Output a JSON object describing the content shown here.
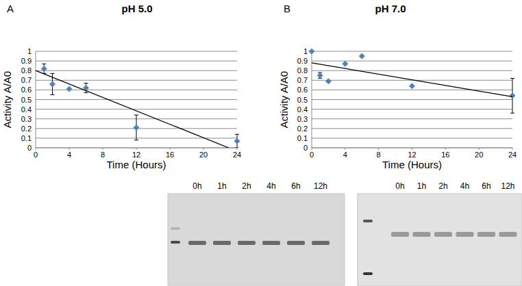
{
  "chart_data": [
    {
      "type": "scatter",
      "panel_label": "A",
      "title": "pH 5.0",
      "x_label": "Time (Hours)",
      "y_label": "Activity A/A0",
      "xlim": [
        0,
        24
      ],
      "xticks": [
        0,
        4,
        8,
        12,
        16,
        20,
        24
      ],
      "ylim": [
        0,
        1
      ],
      "yticks": [
        0,
        0.1,
        0.2,
        0.3,
        0.4,
        0.5,
        0.6,
        0.7,
        0.8,
        0.9,
        1
      ],
      "grid": true,
      "series": [
        {
          "x": [
            1,
            2,
            4,
            6,
            12,
            24
          ],
          "values": [
            0.82,
            0.66,
            0.61,
            0.62,
            0.21,
            0.07
          ],
          "errors": [
            0.05,
            0.11,
            0,
            0.05,
            0.13,
            0.07
          ],
          "color": "#4f81bd",
          "marker": "diamond"
        },
        {
          "type": "line",
          "x": [
            0,
            23
          ],
          "values": [
            0.8,
            0
          ],
          "color": "#000000",
          "line_style": "solid"
        }
      ]
    },
    {
      "type": "scatter",
      "panel_label": "B",
      "title": "pH 7.0",
      "x_label": "Time (Hours)",
      "y_label": "Activity A/A0",
      "xlim": [
        0,
        24
      ],
      "xticks": [
        0,
        4,
        8,
        12,
        16,
        20,
        24
      ],
      "ylim": [
        0,
        1
      ],
      "yticks": [
        0,
        0.1,
        0.2,
        0.3,
        0.4,
        0.5,
        0.6,
        0.7,
        0.8,
        0.9,
        1
      ],
      "grid": true,
      "series": [
        {
          "x": [
            0,
            1,
            2,
            4,
            6,
            12,
            24
          ],
          "values": [
            1,
            0.75,
            0.69,
            0.87,
            0.95,
            0.64,
            0.54
          ],
          "errors": [
            0,
            0.03,
            0,
            0,
            0,
            0,
            0.18
          ],
          "color": "#4f81bd",
          "marker": "diamond"
        },
        {
          "type": "line",
          "x": [
            0,
            24
          ],
          "values": [
            0.88,
            0.53
          ],
          "color": "#000000",
          "line_style": "solid"
        }
      ]
    }
  ],
  "gels": [
    {
      "lanes": [
        "0h",
        "1h",
        "2h",
        "4h",
        "6h",
        "12h"
      ]
    },
    {
      "lanes": [
        "0h",
        "1h",
        "2h",
        "4h",
        "6h",
        "12h"
      ]
    }
  ]
}
